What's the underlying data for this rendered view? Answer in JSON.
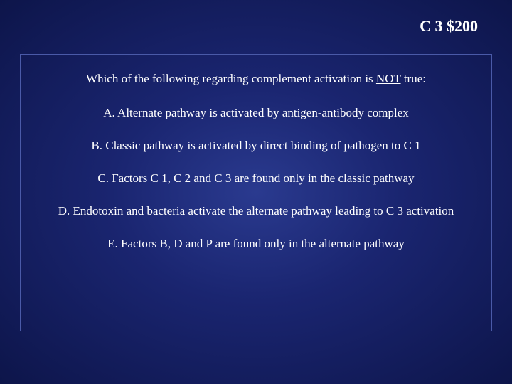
{
  "header": {
    "category": "C 3",
    "value": "$200"
  },
  "question": {
    "prefix": "Which of the following regarding complement activation is ",
    "emphasis": "NOT",
    "suffix": " true:"
  },
  "options": {
    "a": "A. Alternate pathway is activated by antigen-antibody complex",
    "b": "B. Classic pathway is activated by direct binding of pathogen to C 1",
    "c": "C. Factors C 1, C 2 and C 3 are found only in the classic pathway",
    "d": "D. Endotoxin and bacteria activate the alternate pathway leading to C 3 activation",
    "e": "E. Factors B, D and P are found only in the alternate pathway"
  },
  "colors": {
    "background_center": "#2a3a8f",
    "background_edge": "#0d154a",
    "border": "#4a5aa8",
    "text": "#ffffff"
  },
  "typography": {
    "header_fontsize": 22,
    "body_fontsize": 17,
    "font_family": "Times New Roman"
  }
}
